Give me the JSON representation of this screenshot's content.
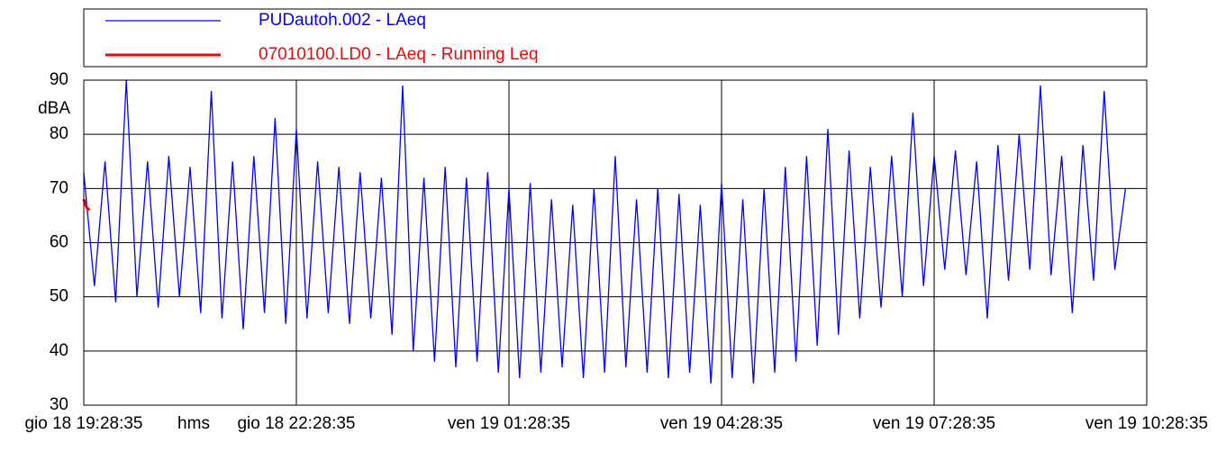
{
  "chart_data": {
    "type": "line",
    "y_unit": "dBA",
    "x_unit": "hms",
    "xlim": [
      0,
      15
    ],
    "xticks": [
      {
        "value": 0,
        "label": "gio 18 19:28:35"
      },
      {
        "value": 3,
        "label": "gio 18 22:28:35"
      },
      {
        "value": 6,
        "label": "ven 19 01:28:35"
      },
      {
        "value": 9,
        "label": "ven 19 04:28:35"
      },
      {
        "value": 12,
        "label": "ven 19 07:28:35"
      },
      {
        "value": 15,
        "label": "ven 19 10:28:35"
      }
    ],
    "ylim": [
      30,
      90
    ],
    "yticks": [
      30,
      40,
      50,
      60,
      70,
      80,
      90
    ],
    "grid": true,
    "series": [
      {
        "name": "PUDautoh.002 - LAeq",
        "color": "#0000ff",
        "x": [
          0,
          0.15,
          0.3,
          0.45,
          0.6,
          0.75,
          0.9,
          1.05,
          1.2,
          1.35,
          1.5,
          1.65,
          1.8,
          1.95,
          2.1,
          2.25,
          2.4,
          2.55,
          2.7,
          2.85,
          3,
          3.15,
          3.3,
          3.45,
          3.6,
          3.75,
          3.9,
          4.05,
          4.2,
          4.35,
          4.5,
          4.65,
          4.8,
          4.95,
          5.1,
          5.25,
          5.4,
          5.55,
          5.7,
          5.85,
          6,
          6.15,
          6.3,
          6.45,
          6.6,
          6.75,
          6.9,
          7.05,
          7.2,
          7.35,
          7.5,
          7.65,
          7.8,
          7.95,
          8.1,
          8.25,
          8.4,
          8.55,
          8.7,
          8.85,
          9,
          9.15,
          9.3,
          9.45,
          9.6,
          9.75,
          9.9,
          10.05,
          10.2,
          10.35,
          10.5,
          10.65,
          10.8,
          10.95,
          11.1,
          11.25,
          11.4,
          11.55,
          11.7,
          11.85,
          12,
          12.15,
          12.3,
          12.45,
          12.6,
          12.75,
          12.9,
          13.05,
          13.2,
          13.35,
          13.5,
          13.65,
          13.8,
          13.95,
          14.1,
          14.25,
          14.4,
          14.55,
          14.7
        ],
        "values": [
          73,
          52,
          75,
          49,
          90,
          50,
          75,
          48,
          76,
          50,
          74,
          47,
          88,
          46,
          75,
          44,
          76,
          47,
          83,
          45,
          81,
          46,
          75,
          47,
          74,
          45,
          73,
          46,
          72,
          43,
          89,
          40,
          72,
          38,
          74,
          37,
          72,
          38,
          73,
          36,
          70,
          35,
          71,
          36,
          68,
          37,
          67,
          35,
          70,
          36,
          76,
          37,
          68,
          36,
          70,
          35,
          69,
          36,
          67,
          34,
          71,
          35,
          68,
          34,
          70,
          36,
          74,
          38,
          76,
          41,
          81,
          43,
          77,
          46,
          74,
          48,
          76,
          50,
          84,
          52,
          76,
          55,
          77,
          54,
          75,
          46,
          78,
          53,
          80,
          55,
          89,
          54,
          76,
          47,
          78,
          53,
          88,
          55,
          70
        ]
      },
      {
        "name": "07010100.LD0 - LAeq - Running Leq",
        "color": "#ff0000",
        "x": [
          0,
          0.04,
          0.08
        ],
        "values": [
          68,
          66.5,
          66
        ]
      }
    ],
    "legend": "top"
  }
}
